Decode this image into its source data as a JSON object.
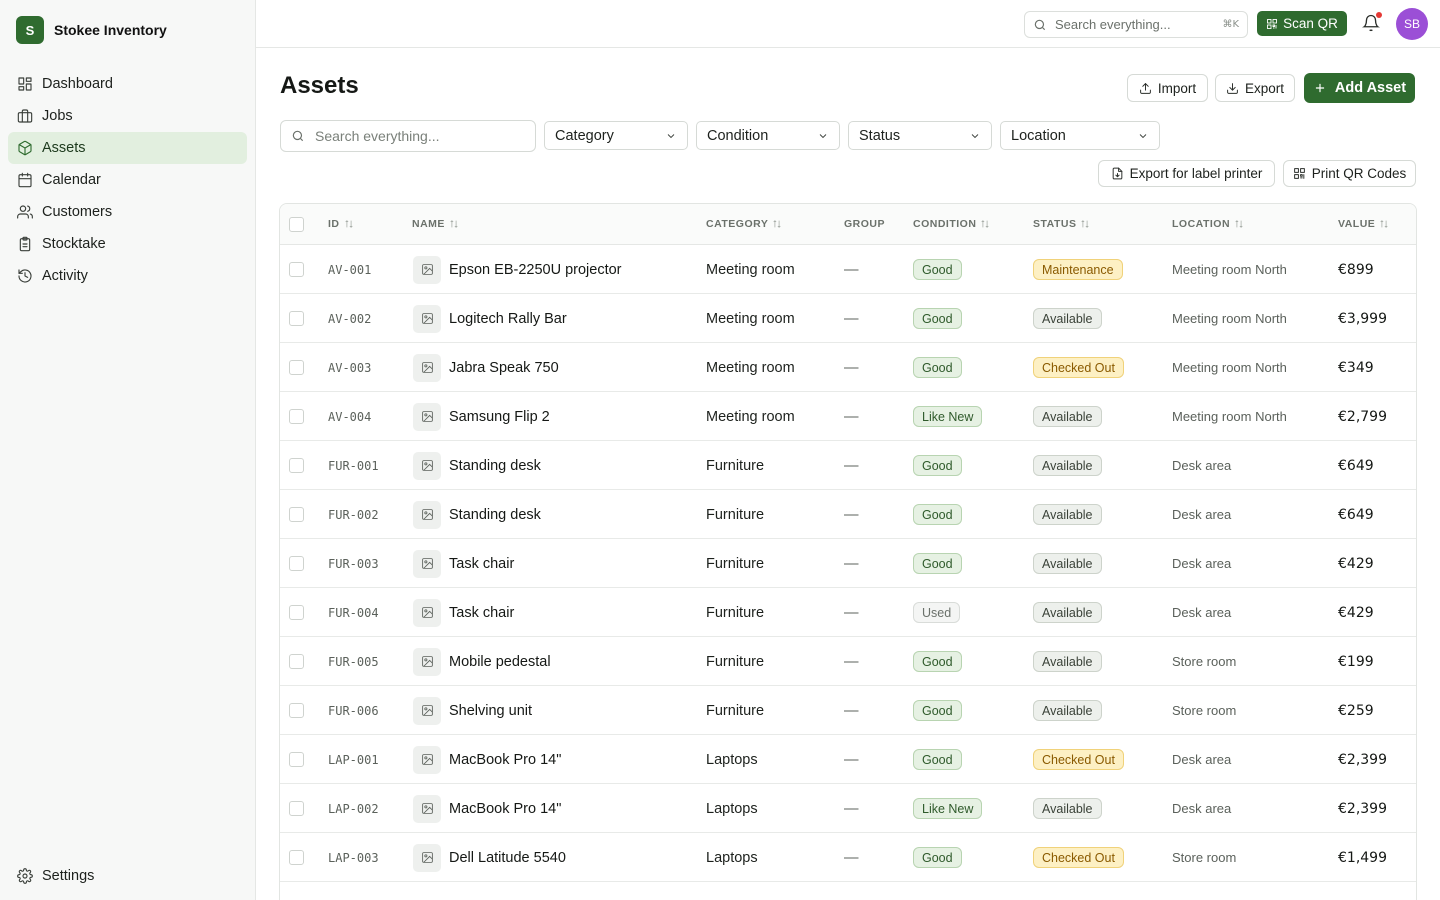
{
  "brand": {
    "logo_letter": "S",
    "name": "Stokee Inventory"
  },
  "nav": [
    {
      "label": "Dashboard",
      "icon": "dashboard-icon",
      "active": false
    },
    {
      "label": "Jobs",
      "icon": "briefcase-icon",
      "active": false
    },
    {
      "label": "Assets",
      "icon": "box-icon",
      "active": true
    },
    {
      "label": "Calendar",
      "icon": "calendar-icon",
      "active": false
    },
    {
      "label": "Customers",
      "icon": "users-icon",
      "active": false
    },
    {
      "label": "Stocktake",
      "icon": "clipboard-icon",
      "active": false
    },
    {
      "label": "Activity",
      "icon": "history-icon",
      "active": false
    }
  ],
  "settings_label": "Settings",
  "topbar": {
    "search_placeholder": "Search everything...",
    "search_shortcut": "⌘K",
    "scan_label": "Scan QR",
    "avatar_initials": "SB"
  },
  "page": {
    "title": "Assets",
    "import_label": "Import",
    "export_label": "Export",
    "add_label": "Add Asset",
    "export_label_printer": "Export for label printer",
    "print_qr_label": "Print QR Codes"
  },
  "filters": {
    "search_placeholder": "Search everything...",
    "category": "Category",
    "condition": "Condition",
    "status": "Status",
    "location": "Location"
  },
  "columns": {
    "id": "ID",
    "name": "NAME",
    "category": "CATEGORY",
    "group": "GROUP",
    "condition": "CONDITION",
    "status": "STATUS",
    "location": "LOCATION",
    "value": "VALUE"
  },
  "colors": {
    "accent": "#2f6b2f",
    "good_bg": "#e6f1e3",
    "good_border": "#b8d4b1",
    "good_text": "#2f5a2b",
    "used_bg": "#f4f5f4",
    "used_border": "#d9dcd9",
    "used_text": "#6b716b",
    "available_bg": "#edf0ec",
    "available_border": "#cdd3cb",
    "available_text": "#3a4238",
    "warn_bg": "#fdf0c4",
    "warn_border": "#f0d27a",
    "warn_text": "#8a5a00"
  },
  "rows": [
    {
      "id": "AV-001",
      "name": "Epson EB-2250U projector",
      "category": "Meeting room",
      "group": "—",
      "condition": "Good",
      "status": "Maintenance",
      "location": "Meeting room North",
      "value": "€899"
    },
    {
      "id": "AV-002",
      "name": "Logitech Rally Bar",
      "category": "Meeting room",
      "group": "—",
      "condition": "Good",
      "status": "Available",
      "location": "Meeting room North",
      "value": "€3,999"
    },
    {
      "id": "AV-003",
      "name": "Jabra Speak 750",
      "category": "Meeting room",
      "group": "—",
      "condition": "Good",
      "status": "Checked Out",
      "location": "Meeting room North",
      "value": "€349"
    },
    {
      "id": "AV-004",
      "name": "Samsung Flip 2",
      "category": "Meeting room",
      "group": "—",
      "condition": "Like New",
      "status": "Available",
      "location": "Meeting room North",
      "value": "€2,799"
    },
    {
      "id": "FUR-001",
      "name": "Standing desk",
      "category": "Furniture",
      "group": "—",
      "condition": "Good",
      "status": "Available",
      "location": "Desk area",
      "value": "€649"
    },
    {
      "id": "FUR-002",
      "name": "Standing desk",
      "category": "Furniture",
      "group": "—",
      "condition": "Good",
      "status": "Available",
      "location": "Desk area",
      "value": "€649"
    },
    {
      "id": "FUR-003",
      "name": "Task chair",
      "category": "Furniture",
      "group": "—",
      "condition": "Good",
      "status": "Available",
      "location": "Desk area",
      "value": "€429"
    },
    {
      "id": "FUR-004",
      "name": "Task chair",
      "category": "Furniture",
      "group": "—",
      "condition": "Used",
      "status": "Available",
      "location": "Desk area",
      "value": "€429"
    },
    {
      "id": "FUR-005",
      "name": "Mobile pedestal",
      "category": "Furniture",
      "group": "—",
      "condition": "Good",
      "status": "Available",
      "location": "Store room",
      "value": "€199"
    },
    {
      "id": "FUR-006",
      "name": "Shelving unit",
      "category": "Furniture",
      "group": "—",
      "condition": "Good",
      "status": "Available",
      "location": "Store room",
      "value": "€259"
    },
    {
      "id": "LAP-001",
      "name": "MacBook Pro 14\"",
      "category": "Laptops",
      "group": "—",
      "condition": "Good",
      "status": "Checked Out",
      "location": "Desk area",
      "value": "€2,399"
    },
    {
      "id": "LAP-002",
      "name": "MacBook Pro 14\"",
      "category": "Laptops",
      "group": "—",
      "condition": "Like New",
      "status": "Available",
      "location": "Desk area",
      "value": "€2,399"
    },
    {
      "id": "LAP-003",
      "name": "Dell Latitude 5540",
      "category": "Laptops",
      "group": "—",
      "condition": "Good",
      "status": "Checked Out",
      "location": "Store room",
      "value": "€1,499"
    }
  ]
}
